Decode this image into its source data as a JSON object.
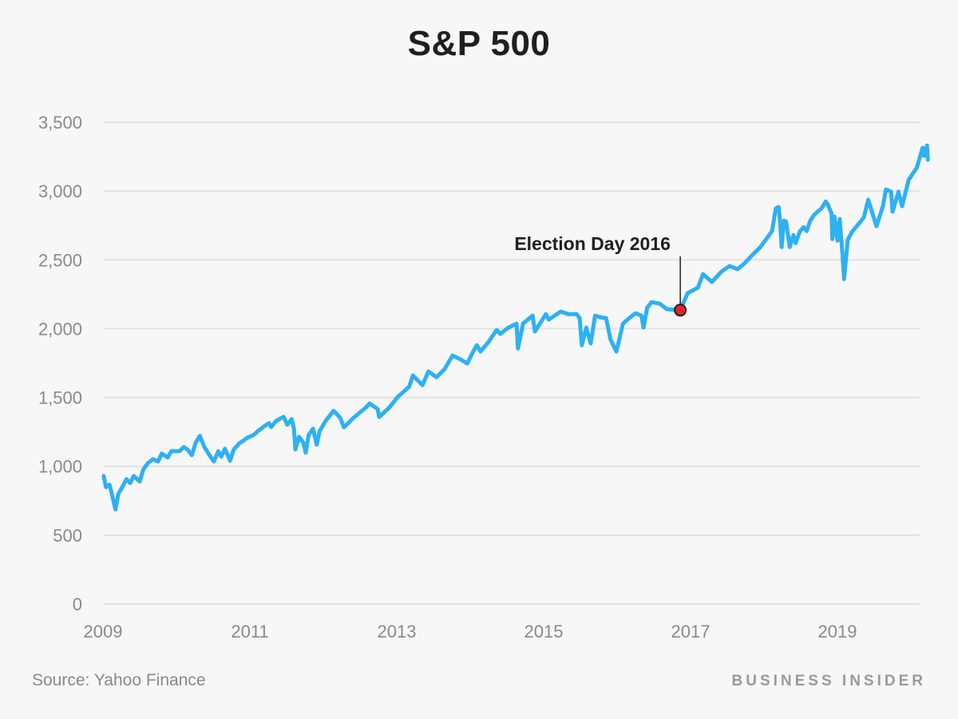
{
  "chart_data": {
    "type": "line",
    "title": "S&P 500",
    "xlabel": "",
    "ylabel": "",
    "xlim": [
      2009,
      2020.14
    ],
    "ylim": [
      0,
      3500
    ],
    "grid": true,
    "legend": "none",
    "yticks": [
      0,
      500,
      1000,
      1500,
      2000,
      2500,
      3000,
      3500
    ],
    "ytick_labels": [
      "0",
      "500",
      "1,000",
      "1,500",
      "2,000",
      "2,500",
      "3,000",
      "3,500"
    ],
    "xticks": [
      2009,
      2011,
      2013,
      2015,
      2017,
      2019
    ],
    "xtick_labels": [
      "2009",
      "2011",
      "2013",
      "2015",
      "2017",
      "2019"
    ],
    "series": [
      {
        "name": "S&P 500",
        "color": "#2eb0f5",
        "points": [
          [
            2009.01,
            930
          ],
          [
            2009.04,
            849
          ],
          [
            2009.09,
            866
          ],
          [
            2009.12,
            802
          ],
          [
            2009.17,
            686
          ],
          [
            2009.21,
            802
          ],
          [
            2009.25,
            837
          ],
          [
            2009.32,
            907
          ],
          [
            2009.37,
            878
          ],
          [
            2009.42,
            930
          ],
          [
            2009.5,
            890
          ],
          [
            2009.55,
            977
          ],
          [
            2009.61,
            1023
          ],
          [
            2009.68,
            1052
          ],
          [
            2009.75,
            1035
          ],
          [
            2009.8,
            1093
          ],
          [
            2009.88,
            1064
          ],
          [
            2009.93,
            1110
          ],
          [
            2010.04,
            1110
          ],
          [
            2010.1,
            1140
          ],
          [
            2010.15,
            1122
          ],
          [
            2010.21,
            1081
          ],
          [
            2010.26,
            1169
          ],
          [
            2010.32,
            1221
          ],
          [
            2010.38,
            1140
          ],
          [
            2010.45,
            1081
          ],
          [
            2010.51,
            1035
          ],
          [
            2010.57,
            1110
          ],
          [
            2010.61,
            1070
          ],
          [
            2010.66,
            1128
          ],
          [
            2010.73,
            1041
          ],
          [
            2010.78,
            1122
          ],
          [
            2010.86,
            1169
          ],
          [
            2010.91,
            1186
          ],
          [
            2010.97,
            1209
          ],
          [
            2011.05,
            1227
          ],
          [
            2011.11,
            1256
          ],
          [
            2011.18,
            1285
          ],
          [
            2011.26,
            1314
          ],
          [
            2011.29,
            1285
          ],
          [
            2011.35,
            1326
          ],
          [
            2011.4,
            1343
          ],
          [
            2011.46,
            1360
          ],
          [
            2011.51,
            1302
          ],
          [
            2011.57,
            1343
          ],
          [
            2011.6,
            1273
          ],
          [
            2011.62,
            1122
          ],
          [
            2011.67,
            1215
          ],
          [
            2011.73,
            1169
          ],
          [
            2011.76,
            1099
          ],
          [
            2011.8,
            1227
          ],
          [
            2011.86,
            1273
          ],
          [
            2011.91,
            1157
          ],
          [
            2011.95,
            1256
          ],
          [
            2012.03,
            1329
          ],
          [
            2012.14,
            1404
          ],
          [
            2012.23,
            1352
          ],
          [
            2012.28,
            1283
          ],
          [
            2012.41,
            1352
          ],
          [
            2012.58,
            1428
          ],
          [
            2012.63,
            1457
          ],
          [
            2012.74,
            1416
          ],
          [
            2012.76,
            1358
          ],
          [
            2012.9,
            1428
          ],
          [
            2013.01,
            1503
          ],
          [
            2013.17,
            1579
          ],
          [
            2013.22,
            1660
          ],
          [
            2013.35,
            1590
          ],
          [
            2013.43,
            1689
          ],
          [
            2013.54,
            1648
          ],
          [
            2013.65,
            1706
          ],
          [
            2013.76,
            1805
          ],
          [
            2013.87,
            1776
          ],
          [
            2013.96,
            1747
          ],
          [
            2014.04,
            1834
          ],
          [
            2014.09,
            1880
          ],
          [
            2014.14,
            1834
          ],
          [
            2014.25,
            1904
          ],
          [
            2014.36,
            1991
          ],
          [
            2014.41,
            1962
          ],
          [
            2014.52,
            2008
          ],
          [
            2014.63,
            2037
          ],
          [
            2014.65,
            1857
          ],
          [
            2014.72,
            2037
          ],
          [
            2014.85,
            2095
          ],
          [
            2014.88,
            1979
          ],
          [
            2015.03,
            2106
          ],
          [
            2015.07,
            2066
          ],
          [
            2015.23,
            2124
          ],
          [
            2015.34,
            2106
          ],
          [
            2015.45,
            2106
          ],
          [
            2015.49,
            2077
          ],
          [
            2015.52,
            1880
          ],
          [
            2015.58,
            2008
          ],
          [
            2015.64,
            1892
          ],
          [
            2015.7,
            2095
          ],
          [
            2015.77,
            2083
          ],
          [
            2015.85,
            2077
          ],
          [
            2015.91,
            1921
          ],
          [
            2015.99,
            1834
          ],
          [
            2016.08,
            2037
          ],
          [
            2016.14,
            2066
          ],
          [
            2016.25,
            2112
          ],
          [
            2016.33,
            2095
          ],
          [
            2016.36,
            2008
          ],
          [
            2016.41,
            2153
          ],
          [
            2016.47,
            2193
          ],
          [
            2016.58,
            2182
          ],
          [
            2016.68,
            2141
          ],
          [
            2016.86,
            2135
          ],
          [
            2016.96,
            2258
          ],
          [
            2017.1,
            2298
          ],
          [
            2017.17,
            2397
          ],
          [
            2017.29,
            2339
          ],
          [
            2017.42,
            2414
          ],
          [
            2017.53,
            2455
          ],
          [
            2017.64,
            2432
          ],
          [
            2017.73,
            2472
          ],
          [
            2017.84,
            2535
          ],
          [
            2017.95,
            2593
          ],
          [
            2018.03,
            2651
          ],
          [
            2018.11,
            2709
          ],
          [
            2018.16,
            2872
          ],
          [
            2018.2,
            2884
          ],
          [
            2018.22,
            2767
          ],
          [
            2018.24,
            2593
          ],
          [
            2018.27,
            2785
          ],
          [
            2018.3,
            2779
          ],
          [
            2018.35,
            2593
          ],
          [
            2018.4,
            2680
          ],
          [
            2018.43,
            2622
          ],
          [
            2018.49,
            2709
          ],
          [
            2018.54,
            2738
          ],
          [
            2018.58,
            2709
          ],
          [
            2018.63,
            2785
          ],
          [
            2018.68,
            2826
          ],
          [
            2018.74,
            2855
          ],
          [
            2018.78,
            2872
          ],
          [
            2018.84,
            2924
          ],
          [
            2018.87,
            2901
          ],
          [
            2018.92,
            2837
          ],
          [
            2018.93,
            2651
          ],
          [
            2018.96,
            2814
          ],
          [
            2019.0,
            2640
          ],
          [
            2019.03,
            2797
          ],
          [
            2019.07,
            2535
          ],
          [
            2019.09,
            2360
          ],
          [
            2019.14,
            2647
          ],
          [
            2019.2,
            2705
          ],
          [
            2019.29,
            2763
          ],
          [
            2019.36,
            2809
          ],
          [
            2019.42,
            2937
          ],
          [
            2019.53,
            2745
          ],
          [
            2019.62,
            2890
          ],
          [
            2019.66,
            3012
          ],
          [
            2019.73,
            2995
          ],
          [
            2019.75,
            2850
          ],
          [
            2019.83,
            2995
          ],
          [
            2019.88,
            2890
          ],
          [
            2019.97,
            3082
          ],
          [
            2020.08,
            3169
          ],
          [
            2020.16,
            3314
          ],
          [
            2020.18,
            3256
          ],
          [
            2020.22,
            3331
          ],
          [
            2020.23,
            3227
          ]
        ]
      }
    ],
    "annotations": [
      {
        "label": "Election Day 2016",
        "x": 2016.86,
        "y": 2135,
        "marker_color": "#e0262b"
      }
    ]
  },
  "footer": {
    "source": "Source: Yahoo Finance",
    "brand": "BUSINESS INSIDER"
  }
}
